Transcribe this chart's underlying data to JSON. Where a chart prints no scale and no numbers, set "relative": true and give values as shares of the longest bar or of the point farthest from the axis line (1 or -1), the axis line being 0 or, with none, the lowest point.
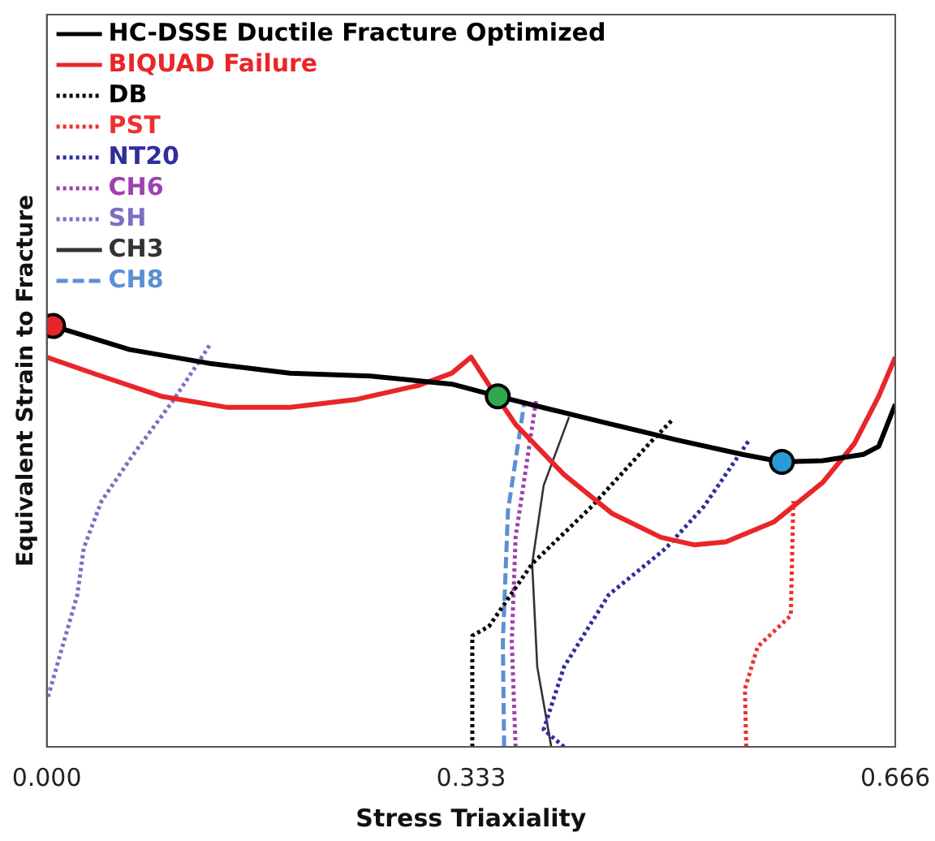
{
  "chart_data": {
    "type": "line",
    "xlabel": "Stress Triaxiality",
    "ylabel": "Equivalent Strain to Fracture",
    "relative": true,
    "xlim": [
      0,
      0.666
    ],
    "xticks": [
      {
        "value": 0,
        "label": "0.000"
      },
      {
        "value": 0.333,
        "label": "0.333"
      },
      {
        "value": 0.666,
        "label": "0.666"
      }
    ],
    "tick_labels": "x",
    "grid": false,
    "legend": "top left",
    "series": [
      {
        "name": "HC-DSSE Ductile Fracture Optimized",
        "color": "#000000",
        "line_style": "solid",
        "x": [
          0.005,
          0.065,
          0.128,
          0.191,
          0.254,
          0.318,
          0.354,
          0.394,
          0.444,
          0.495,
          0.546,
          0.577,
          0.609,
          0.641,
          0.653,
          0.666
        ],
        "values": [
          1.0,
          0.944,
          0.911,
          0.888,
          0.881,
          0.862,
          0.833,
          0.803,
          0.766,
          0.729,
          0.695,
          0.677,
          0.68,
          0.695,
          0.714,
          0.814
        ]
      },
      {
        "name": "BIQUAD Failure",
        "color": "#e8262a",
        "line_style": "solid",
        "x": [
          0,
          0.039,
          0.09,
          0.141,
          0.191,
          0.242,
          0.292,
          0.318,
          0.333,
          0.349,
          0.368,
          0.406,
          0.444,
          0.482,
          0.508,
          0.533,
          0.571,
          0.609,
          0.634,
          0.653,
          0.666
        ],
        "values": [
          0.926,
          0.885,
          0.833,
          0.807,
          0.807,
          0.825,
          0.859,
          0.888,
          0.926,
          0.851,
          0.766,
          0.647,
          0.554,
          0.498,
          0.48,
          0.487,
          0.535,
          0.628,
          0.721,
          0.833,
          0.926
        ]
      },
      {
        "name": "DB",
        "color": "#000000",
        "line_style": "dotted",
        "x": [
          0.334,
          0.334,
          0.347,
          0.381,
          0.428,
          0.473,
          0.491
        ],
        "values": [
          0,
          0.264,
          0.286,
          0.435,
          0.572,
          0.721,
          0.777
        ]
      },
      {
        "name": "PST",
        "color": "#ee3030",
        "line_style": "dotted",
        "x": [
          0.549,
          0.548,
          0.558,
          0.584,
          0.586
        ],
        "values": [
          0,
          0.138,
          0.238,
          0.312,
          0.584
        ]
      },
      {
        "name": "NT20",
        "color": "#2e2e9e",
        "line_style": "dotted",
        "x": [
          0.406,
          0.39,
          0.406,
          0.441,
          0.486,
          0.516,
          0.552
        ],
        "values": [
          0,
          0.041,
          0.19,
          0.361,
          0.472,
          0.572,
          0.732
        ]
      },
      {
        "name": "CH6",
        "color": "#a040b0",
        "line_style": "dotted",
        "x": [
          0.368,
          0.365,
          0.368,
          0.384
        ],
        "values": [
          0,
          0.249,
          0.498,
          0.822
        ]
      },
      {
        "name": "SH",
        "color": "#7b6fc4",
        "line_style": "dotted",
        "x": [
          0.001,
          0.024,
          0.029,
          0.043,
          0.068,
          0.099,
          0.128
        ],
        "values": [
          0.119,
          0.361,
          0.472,
          0.584,
          0.695,
          0.822,
          0.955
        ]
      },
      {
        "name": "CH3",
        "color": "#333333",
        "line_style": "solid",
        "x": [
          0.396,
          0.385,
          0.381,
          0.39,
          0.41
        ],
        "values": [
          0,
          0.19,
          0.435,
          0.621,
          0.784
        ]
      },
      {
        "name": "CH8",
        "color": "#5b8fd6",
        "line_style": "dashed",
        "x": [
          0.359,
          0.358,
          0.362,
          0.375
        ],
        "values": [
          0,
          0.249,
          0.561,
          0.822
        ]
      },
      {
        "type": "scatter",
        "marker": "circle",
        "colors": [
          "#e8262a",
          "#2fa84f",
          "#2a9ad8"
        ],
        "x": [
          0.005,
          0.354,
          0.577
        ],
        "values": [
          1.0,
          0.833,
          0.677
        ]
      }
    ]
  }
}
